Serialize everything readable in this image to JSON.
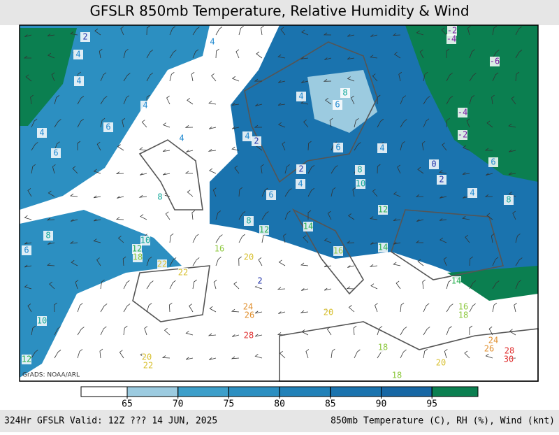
{
  "header": {
    "title": "GFSLR 850mb Temperature, Relative Humidity & Wind"
  },
  "map": {
    "credit": "GrADS: NOAA/ARL",
    "contour_labels": [
      2,
      4,
      4,
      4,
      4,
      6,
      6,
      4,
      4,
      4,
      2,
      4,
      8,
      6,
      6,
      4,
      2,
      4,
      8,
      10,
      6,
      8,
      8,
      12,
      14,
      12,
      14,
      16,
      16,
      20,
      10,
      12,
      18,
      6,
      8,
      10,
      12,
      22,
      22,
      24,
      26,
      28,
      2,
      20,
      18,
      20,
      18,
      16,
      18,
      14,
      24,
      26,
      28,
      30,
      20,
      22,
      -2,
      -4,
      -6,
      -4,
      -2,
      0,
      2,
      6,
      4,
      8
    ]
  },
  "colorbar": {
    "ticks": [
      65,
      70,
      75,
      80,
      85,
      90,
      95
    ],
    "colors": [
      "#ffffff",
      "#9ccbe0",
      "#3d9fca",
      "#2c8fc1",
      "#2181b8",
      "#1a73ae",
      "#1767a4",
      "#0b7f50"
    ]
  },
  "footer": {
    "left": "324Hr GFSLR Valid: 12Z ??? 14 JUN, 2025",
    "right": "850mb Temperature (C), RH (%), Wind (knt)"
  }
}
